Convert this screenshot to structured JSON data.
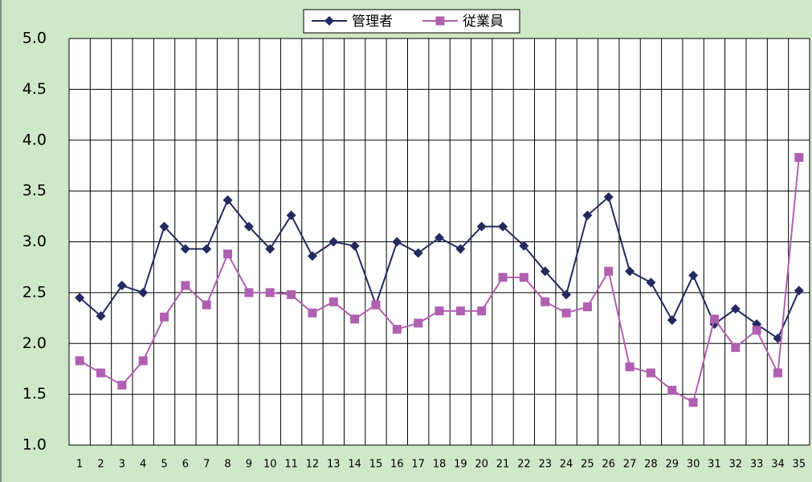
{
  "chart_data": {
    "type": "line",
    "categories": [
      "1",
      "2",
      "3",
      "4",
      "5",
      "6",
      "7",
      "8",
      "9",
      "10",
      "11",
      "12",
      "13",
      "14",
      "15",
      "16",
      "17",
      "18",
      "19",
      "20",
      "21",
      "22",
      "23",
      "24",
      "25",
      "26",
      "27",
      "28",
      "29",
      "30",
      "31",
      "32",
      "33",
      "34",
      "35"
    ],
    "series": [
      {
        "name": "管理者",
        "color": "#232a5e",
        "marker": "diamond",
        "values": [
          2.45,
          2.27,
          2.57,
          2.5,
          3.15,
          2.93,
          2.93,
          3.41,
          3.15,
          2.93,
          3.26,
          2.86,
          3.0,
          2.96,
          2.38,
          3.0,
          2.89,
          3.04,
          2.93,
          3.15,
          3.15,
          2.96,
          2.71,
          2.48,
          3.26,
          3.44,
          2.71,
          2.6,
          2.23,
          2.67,
          2.19,
          2.34,
          2.19,
          2.05,
          2.52
        ]
      },
      {
        "name": "従業員",
        "color": "#b060b0",
        "marker": "square",
        "values": [
          1.83,
          1.71,
          1.59,
          1.83,
          2.26,
          2.57,
          2.38,
          2.88,
          2.5,
          2.5,
          2.48,
          2.3,
          2.41,
          2.24,
          2.38,
          2.14,
          2.2,
          2.32,
          2.32,
          2.32,
          2.65,
          2.65,
          2.41,
          2.3,
          2.36,
          2.71,
          1.77,
          1.71,
          1.54,
          1.42,
          2.24,
          1.96,
          2.13,
          1.71,
          3.83
        ]
      }
    ],
    "ylim": [
      1.0,
      5.0
    ],
    "yticks": [
      {
        "value": 1.0,
        "label": "1.0"
      },
      {
        "value": 1.5,
        "label": "1.5"
      },
      {
        "value": 2.0,
        "label": "2.0"
      },
      {
        "value": 2.5,
        "label": "2.5"
      },
      {
        "value": 3.0,
        "label": "3.0"
      },
      {
        "value": 3.5,
        "label": "3.5"
      },
      {
        "value": 4.0,
        "label": "4.0"
      },
      {
        "value": 4.5,
        "label": "4.5"
      },
      {
        "value": 5.0,
        "label": "5.0"
      }
    ],
    "grid": true,
    "legend": "top"
  }
}
